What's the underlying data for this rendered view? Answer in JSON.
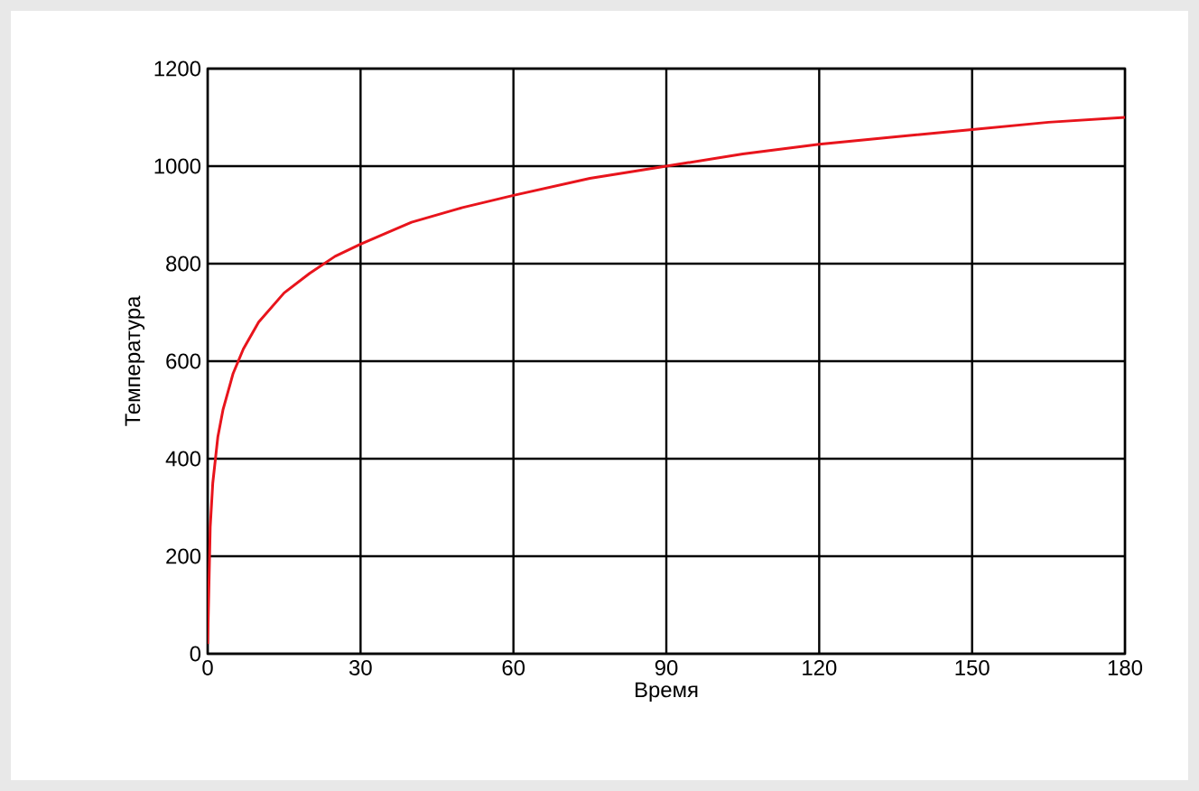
{
  "chart_data": {
    "type": "line",
    "xlabel": "Время",
    "ylabel": "Температура",
    "x": [
      0,
      0.5,
      1,
      2,
      3,
      5,
      7,
      10,
      15,
      20,
      25,
      30,
      40,
      50,
      60,
      75,
      90,
      105,
      120,
      135,
      150,
      165,
      180
    ],
    "series": [
      {
        "color": "#e8141c",
        "values": [
          20,
          260,
          350,
          445,
          500,
          575,
          625,
          680,
          740,
          780,
          815,
          840,
          885,
          915,
          940,
          975,
          1000,
          1025,
          1045,
          1060,
          1075,
          1090,
          1100
        ]
      }
    ],
    "xlim": [
      0,
      180
    ],
    "ylim": [
      0,
      1200
    ],
    "xticks": [
      0,
      30,
      60,
      90,
      120,
      150,
      180
    ],
    "yticks": [
      0,
      200,
      400,
      600,
      800,
      1000,
      1200
    ],
    "grid": true
  }
}
